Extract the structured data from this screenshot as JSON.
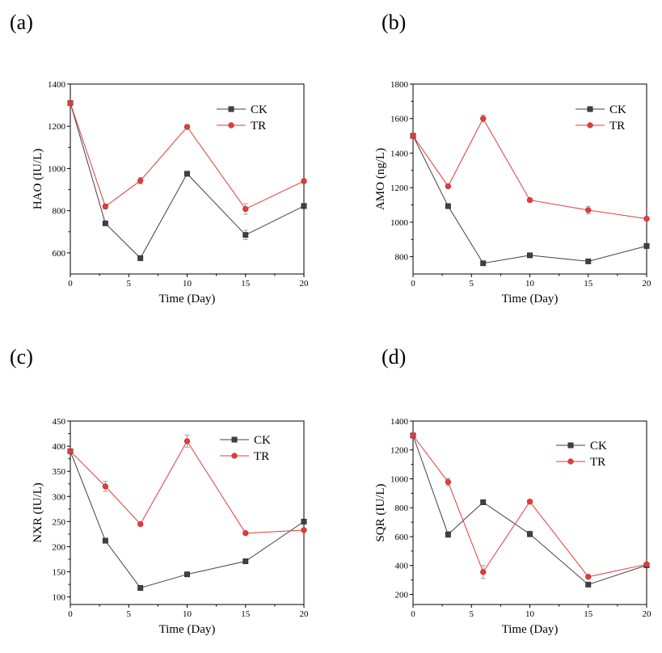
{
  "colors": {
    "CK": "#404040",
    "TR": "#e03c3c",
    "errorbar": "#a0a0a0",
    "axis": "#000000"
  },
  "chart_data": [
    {
      "type": "line",
      "panel_label": "(a)",
      "xlabel": "Time (Day)",
      "ylabel": "HAO (IU/L)",
      "xlim": [
        0,
        20
      ],
      "ylim": [
        500,
        1400
      ],
      "xticks": [
        0,
        5,
        10,
        15,
        20
      ],
      "yticks": [
        600,
        800,
        1000,
        1200,
        1400
      ],
      "legend_position": "top-right",
      "x": [
        0,
        3,
        6,
        10,
        15,
        20
      ],
      "series": [
        {
          "name": "CK",
          "marker": "square",
          "values": [
            1310,
            740,
            575,
            975,
            685,
            822
          ],
          "errors": [
            10,
            10,
            12,
            10,
            22,
            12
          ]
        },
        {
          "name": "TR",
          "marker": "circle",
          "values": [
            1310,
            820,
            942,
            1197,
            808,
            940
          ],
          "errors": [
            10,
            12,
            15,
            10,
            25,
            10
          ]
        }
      ]
    },
    {
      "type": "line",
      "panel_label": "(b)",
      "xlabel": "Time (Day)",
      "ylabel": "AMO (ng/L)",
      "xlim": [
        0,
        20
      ],
      "ylim": [
        700,
        1800
      ],
      "xticks": [
        0,
        5,
        10,
        15,
        20
      ],
      "yticks": [
        800,
        1000,
        1200,
        1400,
        1600,
        1800
      ],
      "legend_position": "top-right",
      "x": [
        0,
        3,
        6,
        10,
        15,
        20
      ],
      "series": [
        {
          "name": "CK",
          "marker": "square",
          "values": [
            1500,
            1093,
            762,
            808,
            773,
            862
          ],
          "errors": [
            8,
            10,
            8,
            10,
            10,
            10
          ]
        },
        {
          "name": "TR",
          "marker": "circle",
          "values": [
            1500,
            1208,
            1600,
            1128,
            1070,
            1020
          ],
          "errors": [
            8,
            10,
            20,
            10,
            22,
            10
          ]
        }
      ]
    },
    {
      "type": "line",
      "panel_label": "(c)",
      "xlabel": "Time (Day)",
      "ylabel": "NXR (IU/L)",
      "xlim": [
        0,
        20
      ],
      "ylim": [
        85,
        450
      ],
      "xticks": [
        0,
        5,
        10,
        15,
        20
      ],
      "yticks": [
        100,
        150,
        200,
        250,
        300,
        350,
        400,
        450
      ],
      "legend_position": "top-right",
      "x": [
        0,
        3,
        6,
        10,
        15,
        20
      ],
      "series": [
        {
          "name": "CK",
          "marker": "square",
          "values": [
            390,
            212,
            118,
            145,
            171,
            250
          ],
          "errors": [
            4,
            4,
            3,
            4,
            4,
            4
          ]
        },
        {
          "name": "TR",
          "marker": "circle",
          "values": [
            390,
            320,
            245,
            410,
            227,
            233
          ],
          "errors": [
            4,
            10,
            3,
            12,
            3,
            3
          ]
        }
      ]
    },
    {
      "type": "line",
      "panel_label": "(d)",
      "xlabel": "Time (Day)",
      "ylabel": "SQR (IU/L)",
      "xlim": [
        0,
        20
      ],
      "ylim": [
        130,
        1400
      ],
      "xticks": [
        0,
        5,
        10,
        15,
        20
      ],
      "yticks": [
        200,
        400,
        600,
        800,
        1000,
        1200,
        1400
      ],
      "legend_position": "top-right",
      "x": [
        0,
        3,
        6,
        10,
        15,
        20
      ],
      "series": [
        {
          "name": "CK",
          "marker": "square",
          "values": [
            1300,
            615,
            838,
            618,
            268,
            402
          ],
          "errors": [
            10,
            20,
            10,
            20,
            10,
            10
          ]
        },
        {
          "name": "TR",
          "marker": "circle",
          "values": [
            1300,
            978,
            355,
            842,
            322,
            408
          ],
          "errors": [
            10,
            25,
            45,
            15,
            10,
            10
          ]
        }
      ]
    }
  ]
}
